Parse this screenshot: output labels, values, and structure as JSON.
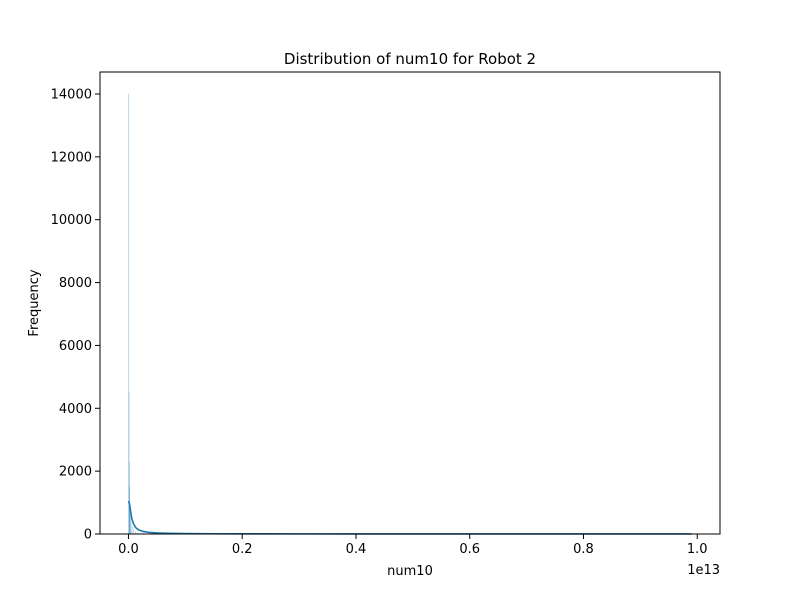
{
  "chart_data": {
    "type": "histogram",
    "title": "Distribution of num10 for Robot 2",
    "xlabel": "num10",
    "ylabel": "Frequency",
    "x_offset_label": "1e13",
    "xlim": [
      -0.05,
      1.04
    ],
    "ylim": [
      0,
      14700
    ],
    "xticks": [
      0.0,
      0.2,
      0.4,
      0.6,
      0.8,
      1.0
    ],
    "xtick_labels": [
      "0.0",
      "0.2",
      "0.4",
      "0.6",
      "0.8",
      "1.0"
    ],
    "yticks": [
      0,
      2000,
      4000,
      6000,
      8000,
      10000,
      12000,
      14000
    ],
    "ytick_labels": [
      "0",
      "2000",
      "4000",
      "6000",
      "8000",
      "10000",
      "12000",
      "14000"
    ],
    "grid": false,
    "legend": "none",
    "bar_color": "#1f77b4",
    "bins": [
      {
        "x": 0.0,
        "count": 14000
      },
      {
        "x": 0.0005,
        "count": 4500
      },
      {
        "x": 0.001,
        "count": 2300
      },
      {
        "x": 0.0015,
        "count": 1500
      },
      {
        "x": 0.002,
        "count": 1000
      },
      {
        "x": 0.003,
        "count": 600
      },
      {
        "x": 0.004,
        "count": 400
      },
      {
        "x": 0.006,
        "count": 250
      },
      {
        "x": 0.008,
        "count": 150
      },
      {
        "x": 0.012,
        "count": 90
      },
      {
        "x": 0.016,
        "count": 60
      },
      {
        "x": 0.025,
        "count": 40
      },
      {
        "x": 0.04,
        "count": 25
      },
      {
        "x": 0.06,
        "count": 15
      }
    ],
    "kde": {
      "x": [
        0.0,
        0.002,
        0.004,
        0.006,
        0.009,
        0.013,
        0.018,
        0.025,
        0.035,
        0.05,
        0.07,
        0.1,
        0.15,
        0.2,
        0.3,
        0.4,
        0.5,
        0.6,
        0.7,
        0.8,
        0.9,
        0.99
      ],
      "y": [
        1050,
        950,
        700,
        480,
        320,
        200,
        130,
        85,
        55,
        35,
        22,
        14,
        8,
        6,
        4,
        3,
        2,
        2,
        1,
        1,
        1,
        1
      ]
    }
  }
}
